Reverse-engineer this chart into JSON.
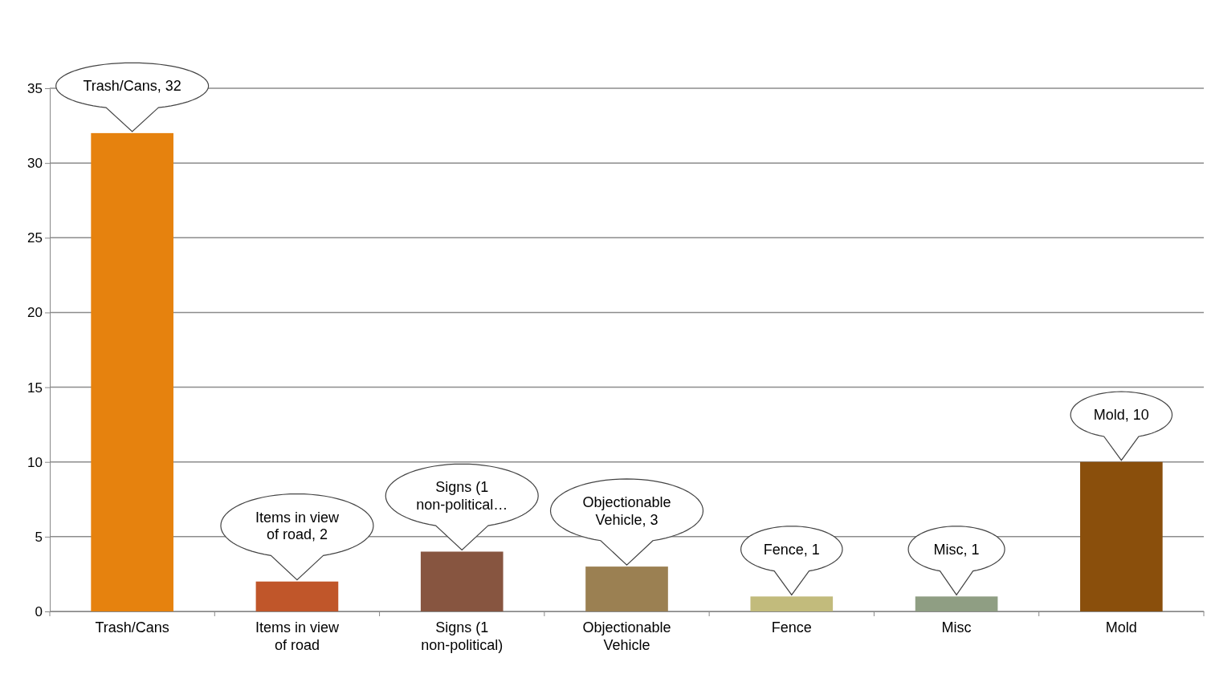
{
  "chart_data": {
    "type": "bar",
    "categories": [
      "Trash/Cans",
      "Items in view of road",
      "Signs (1 non-political)",
      "Objectionable Vehicle",
      "Fence",
      "Misc",
      "Mold"
    ],
    "values": [
      32,
      2,
      4,
      3,
      1,
      1,
      10
    ],
    "colors": [
      "#e6820e",
      "#c0562a",
      "#875540",
      "#9b8052",
      "#c2bb7c",
      "#8f9e83",
      "#8a4f0c"
    ],
    "value_labels": [
      "Trash/Cans, 32",
      "Items in view of road, 2",
      "Signs (1 non-political…",
      "Objectionable Vehicle, 3",
      "Fence, 1",
      "Misc, 1",
      "Mold, 10"
    ],
    "ylim": [
      0,
      35
    ],
    "yticks": [
      0,
      5,
      10,
      15,
      20,
      25,
      30,
      35
    ],
    "grid": "y"
  }
}
